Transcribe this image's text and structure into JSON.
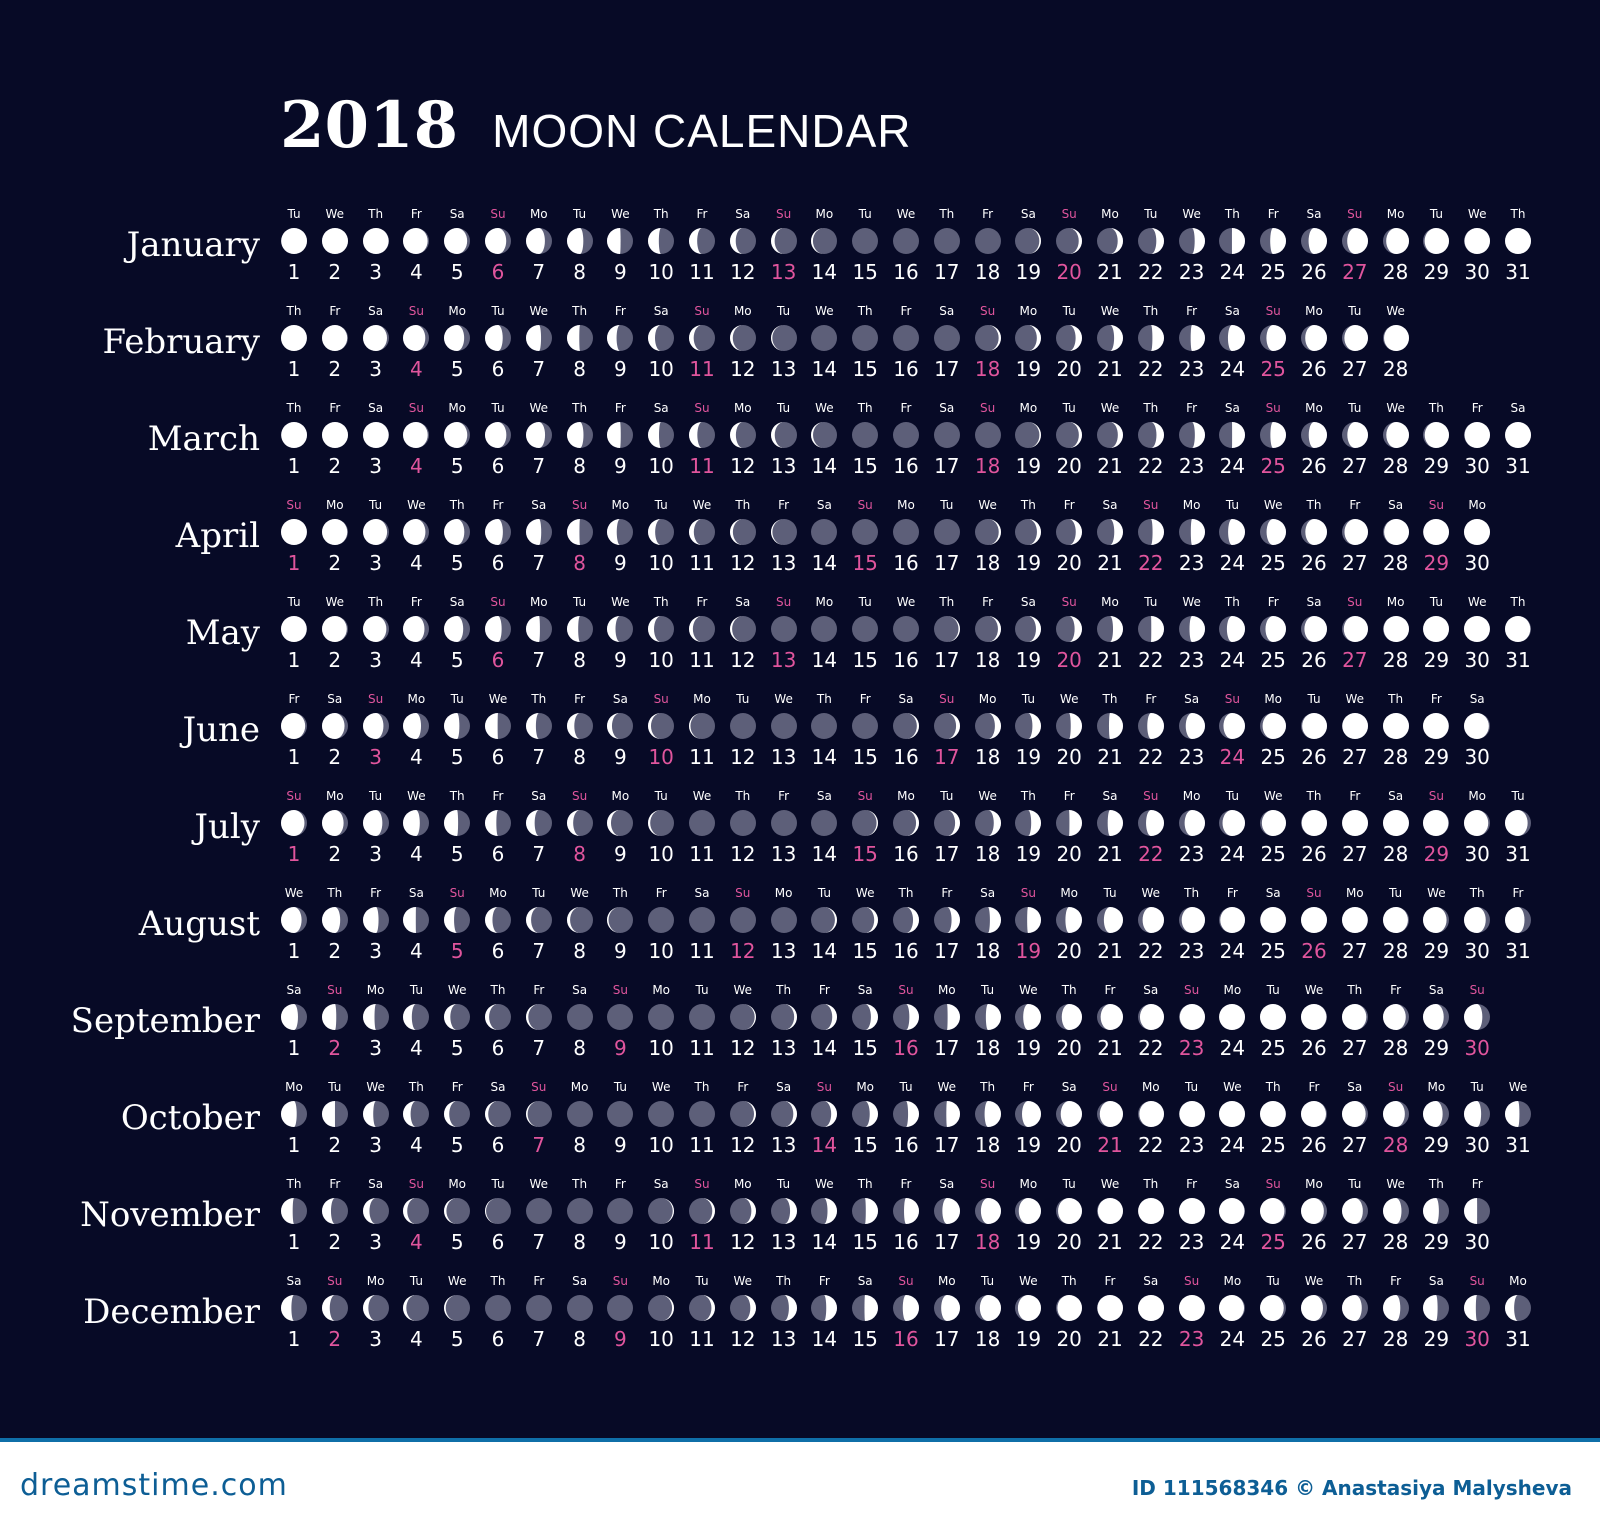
{
  "title": {
    "year": "2018",
    "text": "MOON CALENDAR"
  },
  "colors": {
    "background": "#070a26",
    "moon_lit": "#ffffff",
    "moon_dark": "#5d5f79",
    "sunday": "#e0559d",
    "text": "#ffffff"
  },
  "months": [
    {
      "name": "January",
      "first_dow": "Tu",
      "days": 31
    },
    {
      "name": "February",
      "first_dow": "Th",
      "days": 28
    },
    {
      "name": "March",
      "first_dow": "Th",
      "days": 31
    },
    {
      "name": "April",
      "first_dow": "Su",
      "days": 30
    },
    {
      "name": "May",
      "first_dow": "Tu",
      "days": 31
    },
    {
      "name": "June",
      "first_dow": "Fr",
      "days": 30
    },
    {
      "name": "July",
      "first_dow": "Su",
      "days": 31
    },
    {
      "name": "August",
      "first_dow": "We",
      "days": 31
    },
    {
      "name": "September",
      "first_dow": "Sa",
      "days": 30
    },
    {
      "name": "October",
      "first_dow": "Mo",
      "days": 31
    },
    {
      "name": "November",
      "first_dow": "Th",
      "days": 30
    },
    {
      "name": "December",
      "first_dow": "Sa",
      "days": 31
    }
  ],
  "weekdays": [
    "Mo",
    "Tu",
    "We",
    "Th",
    "Fr",
    "Sa",
    "Su"
  ],
  "watermark": {
    "site": "dreamstime.com",
    "credit": "ID 111568346 © Anastasiya Malysheva"
  }
}
